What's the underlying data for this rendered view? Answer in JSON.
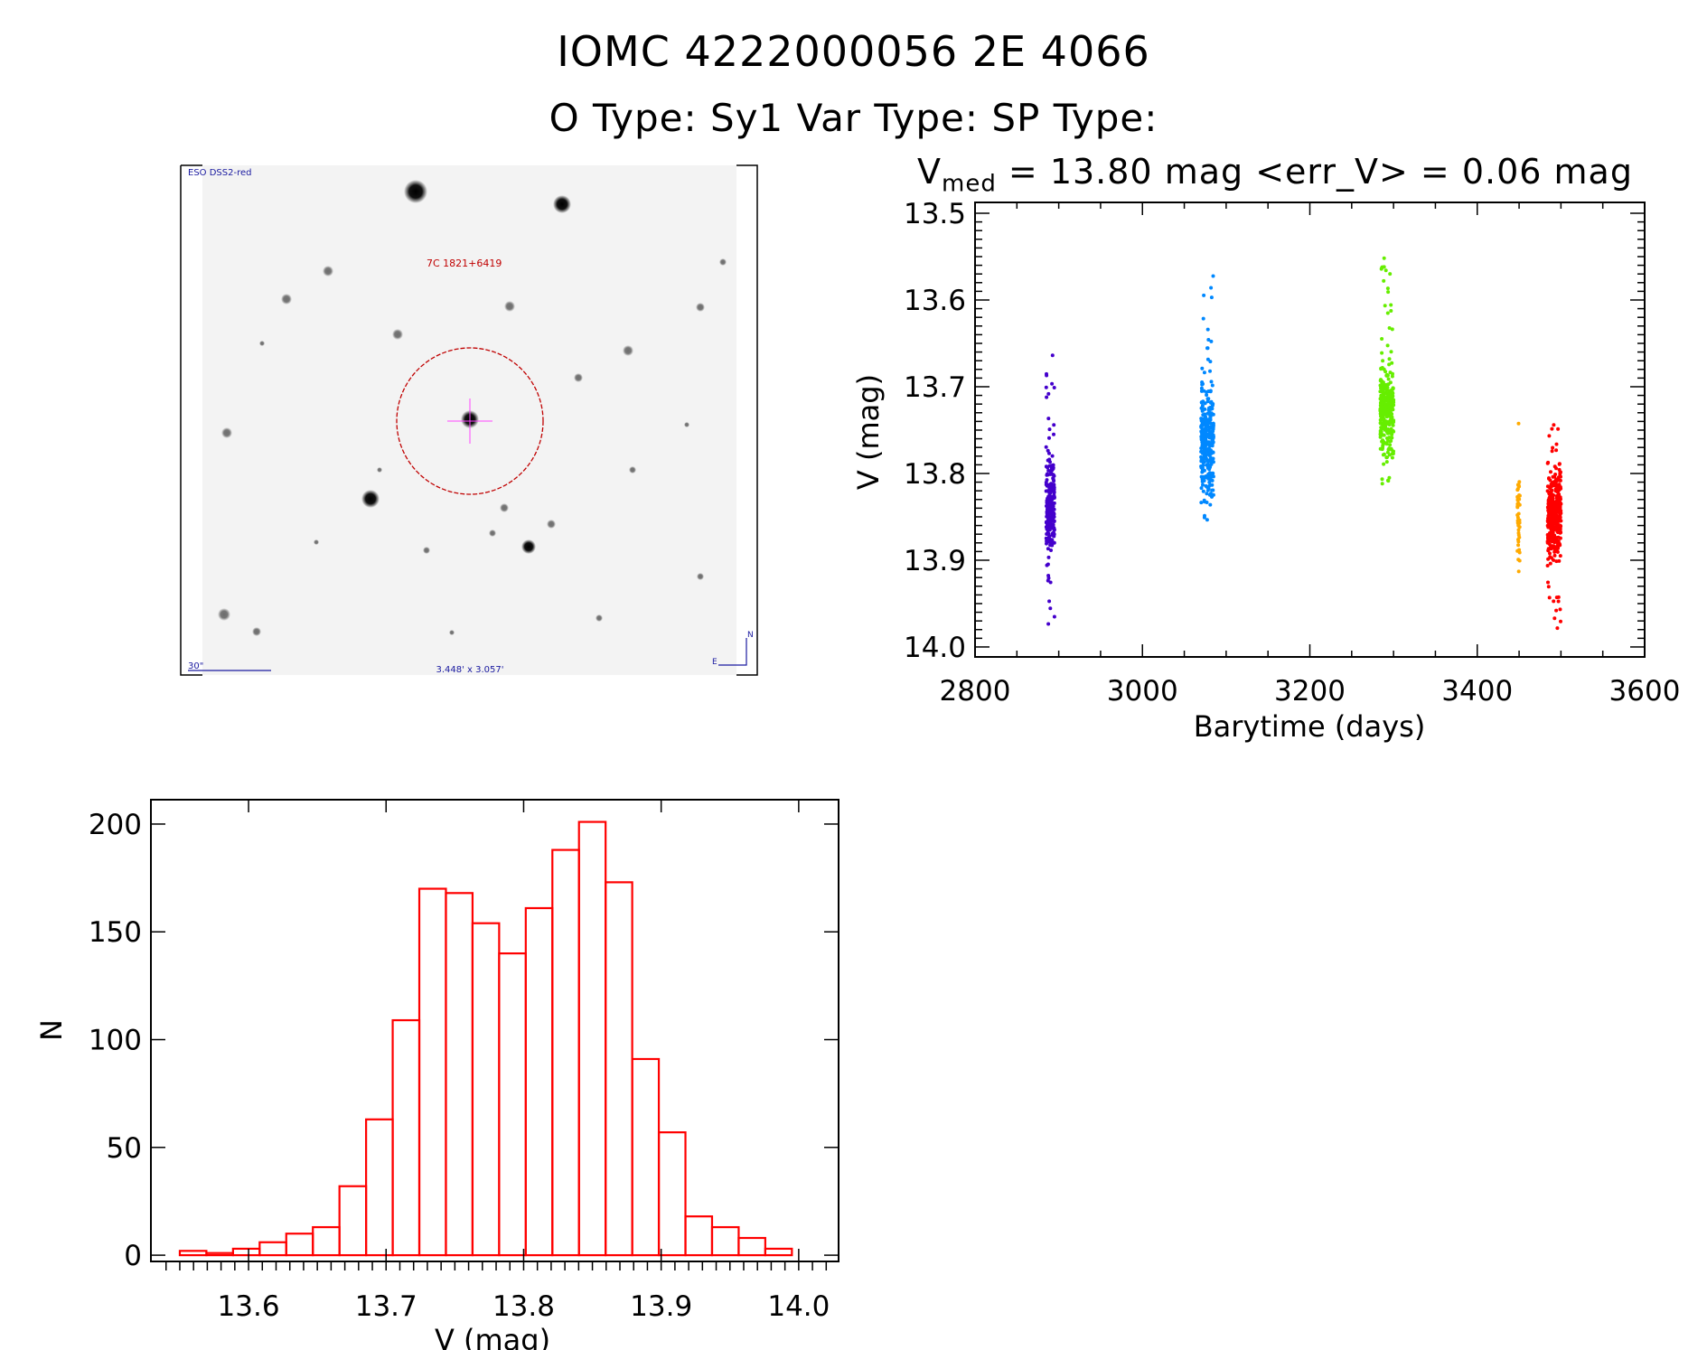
{
  "header": {
    "title": "IOMC 4222000056    2E  4066",
    "subtitle": "O Type: Sy1   Var Type:    SP Type:",
    "vmed_prefix": "V",
    "vmed_sub": "med",
    "vmed_rest": " = 13.80 mag <err_V> = 0.06 mag"
  },
  "finder_image": {
    "survey_label": "ESO DSS2-red",
    "object_label": "7C 1821+6419",
    "scale_label": "30\"",
    "fov_label": "3.448' x 3.057'",
    "north_label": "N",
    "east_label": "E",
    "colors": {
      "survey_text": "#1a1aa0",
      "object_text": "#c00000",
      "circle": "#c00000",
      "crosshair": "#ff44ff"
    }
  },
  "chart_data": [
    {
      "type": "scatter",
      "xlabel": "Barytime (days)",
      "ylabel": "V (mag)",
      "xlim": [
        2800,
        3600
      ],
      "ylim": [
        14.0115,
        13.4875
      ],
      "y_inverted": true,
      "xticks": [
        "2800",
        "3000",
        "3200",
        "3400",
        "3600"
      ],
      "yticks": [
        "13.5",
        "13.6",
        "13.7",
        "13.8",
        "13.9",
        "14.0"
      ],
      "grid": false,
      "series": [
        {
          "color": "#4400cc",
          "x_range": [
            2885,
            2895
          ],
          "y_median": 13.84,
          "y_core": [
            13.77,
            13.91
          ],
          "y_range": [
            13.66,
            13.99
          ],
          "n": 260
        },
        {
          "color": "#0088ff",
          "x_range": [
            3070,
            3085
          ],
          "y_median": 13.77,
          "y_core": [
            13.67,
            13.85
          ],
          "y_range": [
            13.57,
            13.86
          ],
          "n": 320
        },
        {
          "color": "#66ee00",
          "x_range": [
            3284,
            3300
          ],
          "y_median": 13.73,
          "y_core": [
            13.66,
            13.8
          ],
          "y_range": [
            13.55,
            13.83
          ],
          "n": 300
        },
        {
          "color": "#ffaa00",
          "x_range": [
            3448,
            3451
          ],
          "y_median": 13.86,
          "y_core": [
            13.78,
            13.92
          ],
          "y_range": [
            13.73,
            13.97
          ],
          "n": 45
        },
        {
          "color": "#ff0000",
          "x_range": [
            3484,
            3500
          ],
          "y_median": 13.85,
          "y_core": [
            13.78,
            13.92
          ],
          "y_range": [
            13.74,
            13.99
          ],
          "n": 360
        }
      ]
    },
    {
      "type": "bar",
      "subtype": "histogram",
      "xlabel": "V (mag)",
      "ylabel": "N",
      "xlim": [
        13.529,
        14.029
      ],
      "ylim": [
        -2.9,
        211.3
      ],
      "xticks": [
        "13.6",
        "13.7",
        "13.8",
        "13.9",
        "14.0"
      ],
      "yticks": [
        "0",
        "50",
        "100",
        "150",
        "200"
      ],
      "bin_start": 13.55,
      "bin_width": 0.01935,
      "values": [
        2,
        1,
        3,
        6,
        10,
        13,
        32,
        63,
        109,
        170,
        168,
        154,
        140,
        161,
        188,
        201,
        173,
        91,
        57,
        18,
        13,
        8,
        3
      ],
      "color": "#ff0000",
      "grid": false
    }
  ]
}
